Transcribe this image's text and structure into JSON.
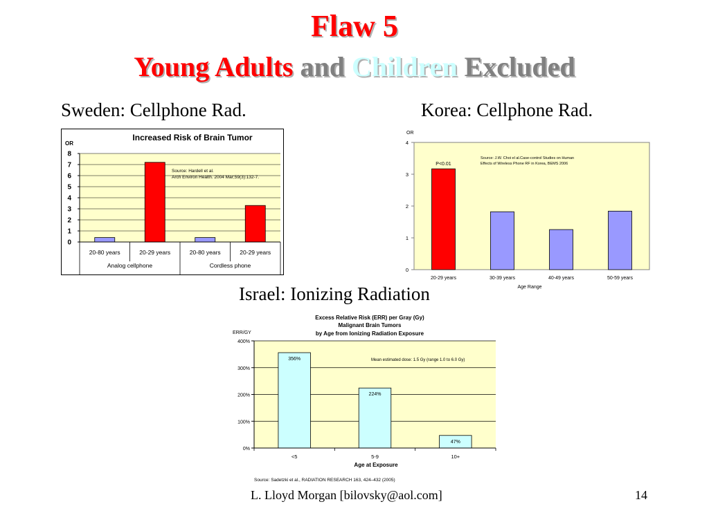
{
  "slide": {
    "title_line1": "Flaw 5",
    "title_young": "Young Adults",
    "title_and": "and",
    "title_children": "Children",
    "title_excluded": "Excluded",
    "sweden_heading": "Sweden: Cellphone Rad.",
    "korea_heading": "Korea: Cellphone Rad.",
    "israel_heading": "Israel: Ionizing Radiation",
    "footer_author": "L. Lloyd Morgan  [bilovsky@aol.com]",
    "page_number": "14"
  },
  "colors": {
    "title_red": "#ff0000",
    "title_gray": "#808080",
    "title_cyan": "#ccffff",
    "bar_red": "#ff0000",
    "bar_blue": "#9999ff",
    "bar_cyan": "#ccffff",
    "plot_bg": "#ffffcc"
  },
  "chart_data": [
    {
      "id": "sweden",
      "type": "bar",
      "title": "Increased Risk of Brain Tumor",
      "ylabel": "OR",
      "xlabel": "",
      "categories": [
        "20-80 years",
        "20-29 years",
        "20-80 years",
        "20-29 years"
      ],
      "groups": [
        "Analog cellphone",
        "Cordless phone"
      ],
      "values": [
        0.4,
        7.2,
        0.4,
        3.3
      ],
      "bar_colors": [
        "#9999ff",
        "#ff0000",
        "#9999ff",
        "#ff0000"
      ],
      "ylim": [
        0,
        8
      ],
      "yticks": [
        "0",
        "1",
        "2",
        "3",
        "4",
        "5",
        "6",
        "7",
        "8"
      ],
      "grid": true,
      "annotation": [
        "Source: Hardell et al.",
        "Arch Environ Health. 2004 Mar;59(3):132-7."
      ]
    },
    {
      "id": "korea",
      "type": "bar",
      "title": "",
      "ylabel": "OR",
      "xlabel": "Age Range",
      "categories": [
        "20-29 years",
        "30-39 years",
        "40-49 years",
        "50-59 years"
      ],
      "values": [
        3.17,
        1.82,
        1.26,
        1.84
      ],
      "bar_colors": [
        "#ff0000",
        "#9999ff",
        "#9999ff",
        "#9999ff"
      ],
      "ylim": [
        0,
        4
      ],
      "yticks": [
        "0",
        "1",
        "2",
        "3",
        "4"
      ],
      "grid": false,
      "bar_label": "P<0.01",
      "annotation": [
        "Source:  J.W. Choi el al.Case-control Studies on Human",
        "Effects of Wireless Phone RF in Korea, BEMS 2006"
      ]
    },
    {
      "id": "israel",
      "type": "bar",
      "title": [
        "Excess Relative Risk (ERR) per Gray (Gy)",
        "Malignant Brain Tumors",
        "by Age from Ionizing Radiation Exposure"
      ],
      "ylabel": "ERR/GY",
      "xlabel": "Age at Exposure",
      "categories": [
        "<5",
        "5-9",
        "10+"
      ],
      "values": [
        356,
        224,
        47
      ],
      "data_labels": [
        "356%",
        "224%",
        "47%"
      ],
      "bar_colors": [
        "#ccffff",
        "#ccffff",
        "#ccffff"
      ],
      "ylim": [
        0,
        400
      ],
      "yticks": [
        "0%",
        "100%",
        "200%",
        "300%",
        "400%"
      ],
      "grid": true,
      "annotation": "Mean estimated dose: 1.5 Gy (range 1.0 to 6.0 Gy)",
      "source": "Source: Sadetzki et al., RADIATION RESEARCH 163, 424–432 (2005)"
    }
  ]
}
